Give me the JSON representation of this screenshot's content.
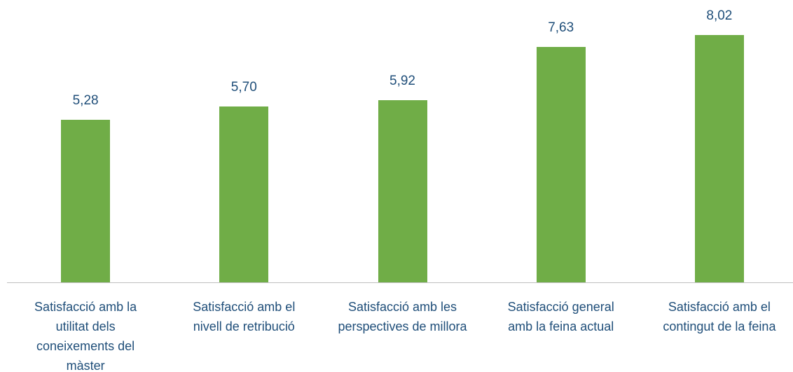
{
  "chart_data": {
    "type": "bar",
    "categories": [
      "Satisfacció amb la\nutilitat dels\nconeixements del\nmàster",
      "Satisfacció amb el\nnivell de retribució",
      "Satisfacció amb les\nperspectives de millora",
      "Satisfacció general\namb la feina actual",
      "Satisfacció amb el\ncontingut de la feina"
    ],
    "values": [
      5.28,
      5.7,
      5.92,
      7.63,
      8.02
    ],
    "value_labels": [
      "5,28",
      "5,70",
      "5,92",
      "7,63",
      "8,02"
    ],
    "color": "#70ad47"
  }
}
